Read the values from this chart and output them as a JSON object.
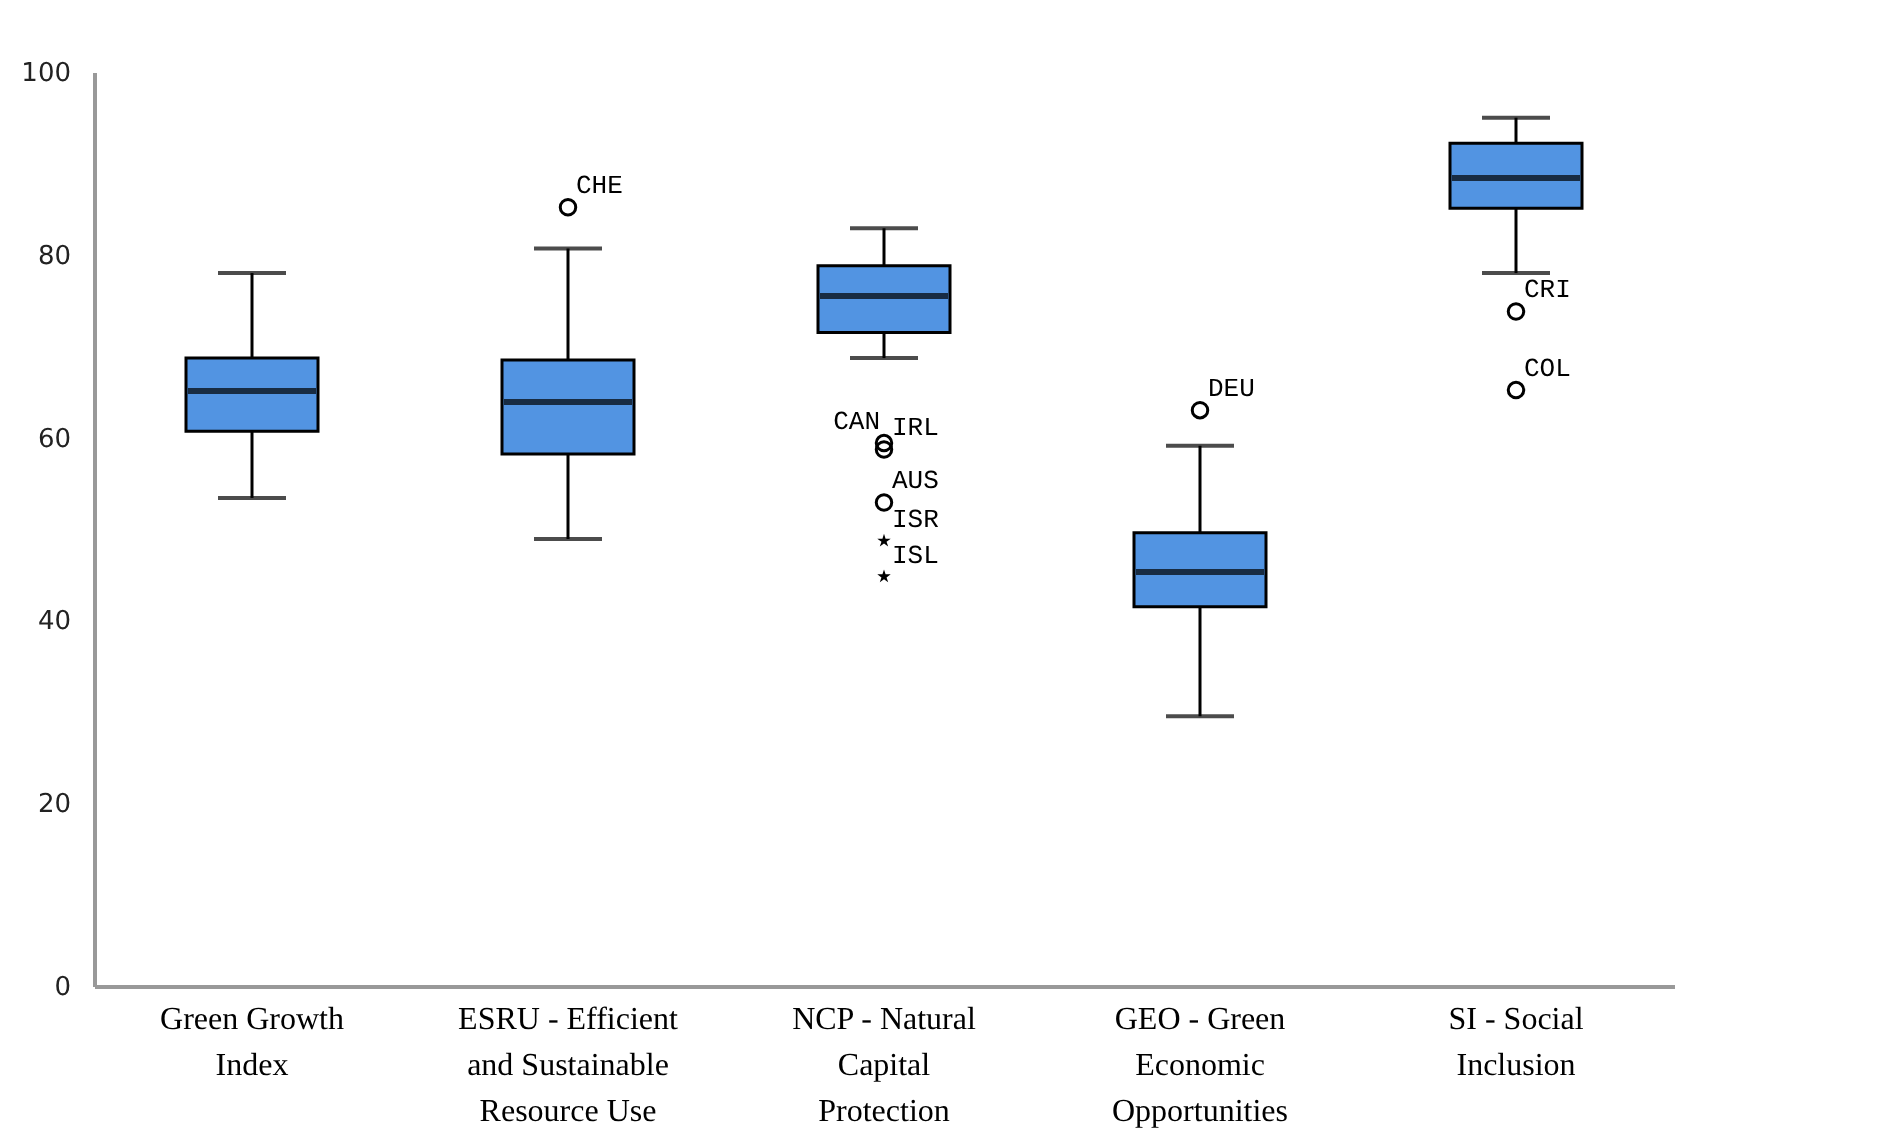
{
  "chart_data": {
    "type": "box",
    "color": "#5294e2",
    "categories": [
      "Green Growth Index",
      "ESRU - Efficient and Sustainable Resource Use",
      "NCP - Natural Capital Protection",
      "GEO - Green Economic Opportunities",
      "SI - Social Inclusion"
    ],
    "boxes": [
      {
        "low": 53.4,
        "q1": 60.7,
        "median": 65.1,
        "q3": 68.7,
        "high": 78.0
      },
      {
        "low": 48.9,
        "q1": 58.2,
        "median": 63.9,
        "q3": 68.5,
        "high": 80.7
      },
      {
        "low": 68.7,
        "q1": 71.5,
        "median": 75.5,
        "q3": 78.8,
        "high": 82.9
      },
      {
        "low": 29.5,
        "q1": 41.5,
        "median": 45.3,
        "q3": 49.6,
        "high": 59.1
      },
      {
        "low": 78.0,
        "q1": 85.1,
        "median": 88.4,
        "q3": 92.2,
        "high": 95.0
      }
    ],
    "series": [
      {
        "type": "scatter",
        "marker": "circle",
        "color": "#000000",
        "x": [
          "ESRU - Efficient and Sustainable Resource Use",
          "NCP - Natural Capital Protection",
          "NCP - Natural Capital Protection",
          "NCP - Natural Capital Protection",
          "GEO - Green Economic Opportunities",
          "SI - Social Inclusion",
          "SI - Social Inclusion"
        ],
        "values": [
          85.2,
          59.4,
          58.7,
          52.9,
          63.0,
          73.8,
          65.2
        ],
        "value_labels": [
          "CHE",
          "CAN",
          "IRL",
          "AUS",
          "DEU",
          "CRI",
          "COL"
        ]
      },
      {
        "type": "scatter",
        "marker": "star",
        "color": "#000000",
        "x": [
          "NCP - Natural Capital Protection",
          "NCP - Natural Capital Protection"
        ],
        "values": [
          48.7,
          44.8
        ],
        "value_labels": [
          "ISR",
          "ISL"
        ]
      }
    ],
    "ylim": [
      0,
      100
    ],
    "yticks": [
      0,
      20,
      40,
      60,
      80,
      100
    ]
  }
}
